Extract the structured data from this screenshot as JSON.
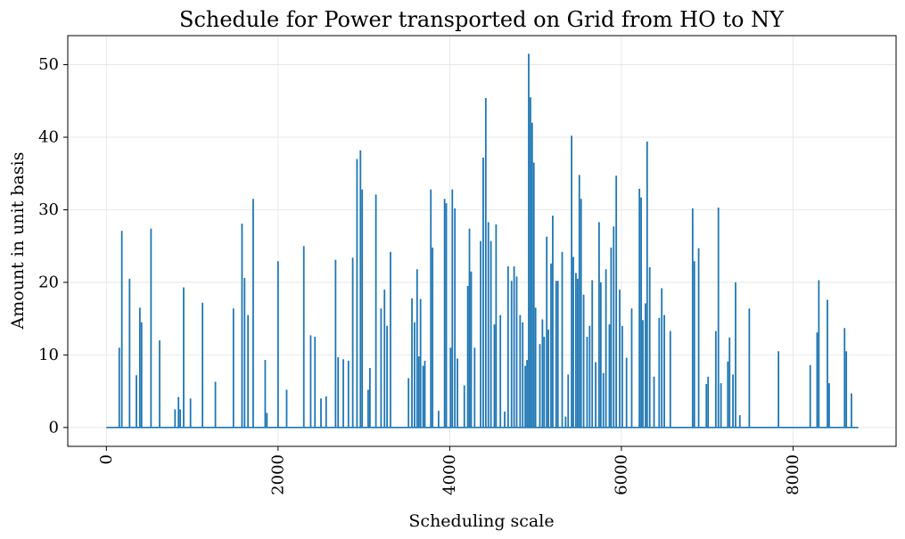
{
  "chart_data": {
    "type": "line",
    "title": "Schedule for Power transported on Grid from HO to NY",
    "xlabel": "Scheduling scale",
    "ylabel": "Amount in unit basis",
    "xlim": [
      -450,
      9200
    ],
    "ylim": [
      -2.6,
      54
    ],
    "xticks": [
      0,
      2000,
      4000,
      6000,
      8000
    ],
    "yticks": [
      0,
      10,
      20,
      30,
      40,
      50
    ],
    "grid": true,
    "series_color": "#1f77b4",
    "spikes": [
      [
        150,
        11.0
      ],
      [
        180,
        27.1
      ],
      [
        270,
        20.5
      ],
      [
        350,
        7.2
      ],
      [
        390,
        16.5
      ],
      [
        410,
        14.5
      ],
      [
        520,
        27.4
      ],
      [
        620,
        12.0
      ],
      [
        800,
        2.5
      ],
      [
        840,
        4.2
      ],
      [
        860,
        2.5
      ],
      [
        900,
        19.3
      ],
      [
        980,
        4.0
      ],
      [
        1120,
        17.2
      ],
      [
        1270,
        6.3
      ],
      [
        1480,
        16.4
      ],
      [
        1580,
        28.1
      ],
      [
        1610,
        20.6
      ],
      [
        1650,
        15.5
      ],
      [
        1710,
        31.5
      ],
      [
        1850,
        9.3
      ],
      [
        1870,
        2.0
      ],
      [
        2000,
        22.9
      ],
      [
        2100,
        5.2
      ],
      [
        2300,
        25.0
      ],
      [
        2380,
        12.7
      ],
      [
        2430,
        12.5
      ],
      [
        2500,
        4.0
      ],
      [
        2560,
        4.3
      ],
      [
        2670,
        23.1
      ],
      [
        2700,
        9.7
      ],
      [
        2760,
        9.4
      ],
      [
        2820,
        9.2
      ],
      [
        2870,
        23.4
      ],
      [
        2920,
        37.0
      ],
      [
        2960,
        38.2
      ],
      [
        2980,
        32.8
      ],
      [
        3050,
        5.2
      ],
      [
        3070,
        8.2
      ],
      [
        3140,
        32.1
      ],
      [
        3200,
        16.4
      ],
      [
        3240,
        19.0
      ],
      [
        3270,
        14.0
      ],
      [
        3310,
        24.2
      ],
      [
        3520,
        6.8
      ],
      [
        3560,
        17.8
      ],
      [
        3590,
        14.5
      ],
      [
        3620,
        21.8
      ],
      [
        3640,
        9.8
      ],
      [
        3660,
        17.7
      ],
      [
        3690,
        8.5
      ],
      [
        3710,
        9.2
      ],
      [
        3780,
        32.8
      ],
      [
        3800,
        24.8
      ],
      [
        3870,
        2.3
      ],
      [
        3940,
        31.5
      ],
      [
        3960,
        30.9
      ],
      [
        4010,
        11.0
      ],
      [
        4030,
        32.8
      ],
      [
        4060,
        30.2
      ],
      [
        4090,
        9.5
      ],
      [
        4170,
        5.8
      ],
      [
        4210,
        19.5
      ],
      [
        4230,
        27.4
      ],
      [
        4250,
        21.5
      ],
      [
        4290,
        11.0
      ],
      [
        4360,
        25.7
      ],
      [
        4390,
        37.2
      ],
      [
        4420,
        45.4
      ],
      [
        4450,
        28.3
      ],
      [
        4480,
        25.7
      ],
      [
        4520,
        14.2
      ],
      [
        4540,
        28.0
      ],
      [
        4590,
        15.5
      ],
      [
        4640,
        2.2
      ],
      [
        4680,
        22.2
      ],
      [
        4720,
        20.2
      ],
      [
        4750,
        22.2
      ],
      [
        4780,
        20.8
      ],
      [
        4820,
        15.5
      ],
      [
        4850,
        14.5
      ],
      [
        4880,
        8.5
      ],
      [
        4900,
        9.3
      ],
      [
        4920,
        51.5
      ],
      [
        4940,
        45.5
      ],
      [
        4960,
        42.0
      ],
      [
        4980,
        36.5
      ],
      [
        5000,
        16.5
      ],
      [
        5050,
        11.5
      ],
      [
        5080,
        14.9
      ],
      [
        5100,
        12.5
      ],
      [
        5130,
        26.3
      ],
      [
        5150,
        13.5
      ],
      [
        5180,
        22.6
      ],
      [
        5200,
        29.2
      ],
      [
        5240,
        20.2
      ],
      [
        5260,
        20.2
      ],
      [
        5310,
        24.2
      ],
      [
        5350,
        1.5
      ],
      [
        5380,
        7.3
      ],
      [
        5420,
        40.2
      ],
      [
        5440,
        23.5
      ],
      [
        5470,
        21.3
      ],
      [
        5490,
        20.5
      ],
      [
        5510,
        34.8
      ],
      [
        5530,
        31.5
      ],
      [
        5560,
        18.3
      ],
      [
        5600,
        12.5
      ],
      [
        5630,
        14.0
      ],
      [
        5660,
        20.3
      ],
      [
        5700,
        9.0
      ],
      [
        5740,
        28.3
      ],
      [
        5760,
        20.0
      ],
      [
        5790,
        7.5
      ],
      [
        5820,
        21.8
      ],
      [
        5860,
        14.2
      ],
      [
        5880,
        24.8
      ],
      [
        5910,
        27.7
      ],
      [
        5940,
        34.7
      ],
      [
        5980,
        19.0
      ],
      [
        6010,
        14.0
      ],
      [
        6060,
        9.6
      ],
      [
        6120,
        16.4
      ],
      [
        6210,
        32.9
      ],
      [
        6230,
        31.7
      ],
      [
        6250,
        14.8
      ],
      [
        6280,
        17.1
      ],
      [
        6300,
        39.4
      ],
      [
        6330,
        22.1
      ],
      [
        6380,
        7.0
      ],
      [
        6440,
        15.1
      ],
      [
        6470,
        19.2
      ],
      [
        6500,
        15.5
      ],
      [
        6570,
        13.3
      ],
      [
        6830,
        30.2
      ],
      [
        6850,
        22.9
      ],
      [
        6900,
        24.7
      ],
      [
        6990,
        6.0
      ],
      [
        7010,
        7.0
      ],
      [
        7100,
        13.3
      ],
      [
        7130,
        30.3
      ],
      [
        7160,
        6.1
      ],
      [
        7240,
        9.1
      ],
      [
        7260,
        12.4
      ],
      [
        7300,
        7.3
      ],
      [
        7330,
        20.0
      ],
      [
        7380,
        1.7
      ],
      [
        7490,
        16.4
      ],
      [
        7830,
        10.5
      ],
      [
        8200,
        8.6
      ],
      [
        8280,
        13.1
      ],
      [
        8300,
        20.3
      ],
      [
        8400,
        17.6
      ],
      [
        8420,
        6.1
      ],
      [
        8600,
        13.7
      ],
      [
        8620,
        10.5
      ],
      [
        8680,
        4.7
      ]
    ]
  }
}
